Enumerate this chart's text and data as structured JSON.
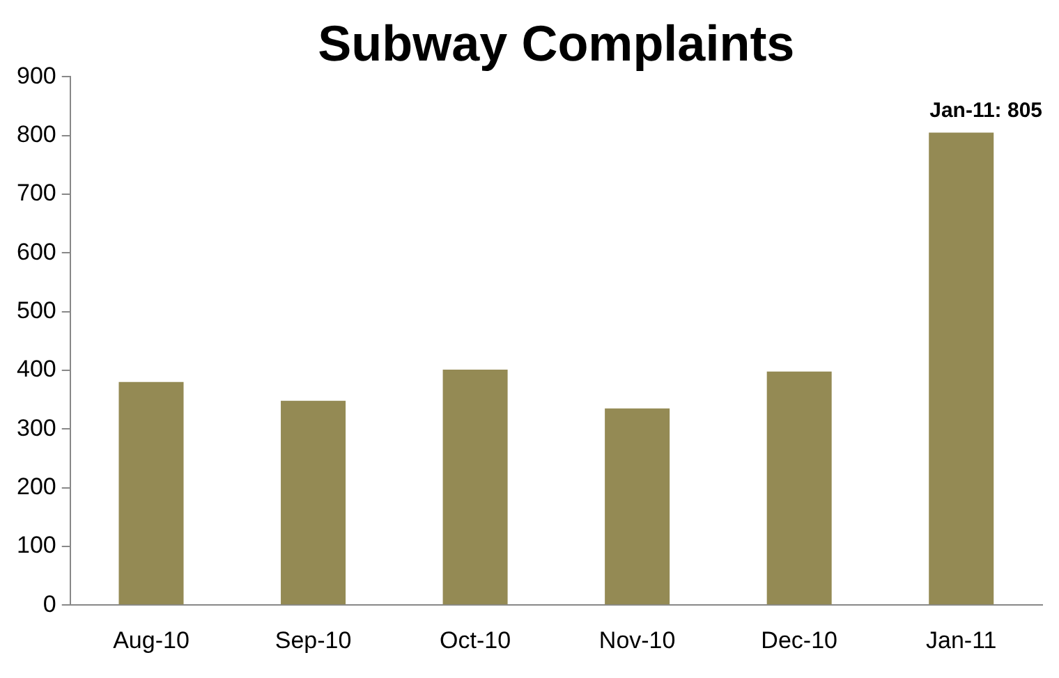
{
  "chart_data": {
    "type": "bar",
    "title": "Subway Complaints",
    "categories": [
      "Aug-10",
      "Sep-10",
      "Oct-10",
      "Nov-10",
      "Dec-10",
      "Jan-11"
    ],
    "values": [
      380,
      348,
      401,
      335,
      398,
      805
    ],
    "color": "#948a54",
    "ylim": [
      0,
      900
    ],
    "yticks": [
      0,
      100,
      200,
      300,
      400,
      500,
      600,
      700,
      800,
      900
    ],
    "grid": false,
    "legend": false,
    "annotations": [
      {
        "text": "Jan-11: 805",
        "x": "Jan-11",
        "y": 805
      }
    ]
  }
}
